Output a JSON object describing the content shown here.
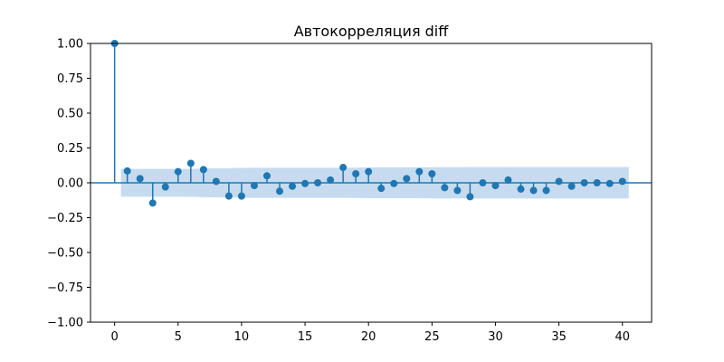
{
  "chart_data": {
    "type": "stem",
    "title": "Автокорреляция diff",
    "xlabel": "",
    "ylabel": "",
    "xlim": [
      -1.9,
      42.3
    ],
    "ylim": [
      -1.0,
      1.0
    ],
    "x_ticks": [
      0,
      5,
      10,
      15,
      20,
      25,
      30,
      35,
      40
    ],
    "x_tick_labels": [
      "0",
      "5",
      "10",
      "15",
      "20",
      "25",
      "30",
      "35",
      "40"
    ],
    "y_ticks": [
      1.0,
      0.75,
      0.5,
      0.25,
      0.0,
      -0.25,
      -0.5,
      -0.75,
      -1.0
    ],
    "y_tick_labels": [
      "1.00",
      "0.75",
      "0.50",
      "0.25",
      "0.00",
      "−0.25",
      "−0.50",
      "−0.75",
      "−1.00"
    ],
    "lags": [
      0,
      1,
      2,
      3,
      4,
      5,
      6,
      7,
      8,
      9,
      10,
      11,
      12,
      13,
      14,
      15,
      16,
      17,
      18,
      19,
      20,
      21,
      22,
      23,
      24,
      25,
      26,
      27,
      28,
      29,
      30,
      31,
      32,
      33,
      34,
      35,
      36,
      37,
      38,
      39,
      40
    ],
    "values": [
      1.0,
      0.085,
      0.03,
      -0.145,
      -0.03,
      0.08,
      0.14,
      0.095,
      0.01,
      -0.095,
      -0.095,
      -0.02,
      0.05,
      -0.06,
      -0.025,
      -0.005,
      0.0,
      0.02,
      0.11,
      0.065,
      0.08,
      -0.04,
      -0.005,
      0.03,
      0.08,
      0.065,
      -0.035,
      -0.055,
      -0.1,
      0.0,
      -0.02,
      0.02,
      -0.045,
      -0.055,
      -0.055,
      0.01,
      -0.025,
      0.0,
      0.0,
      -0.005,
      0.01
    ],
    "confidence_band": {
      "lags": [
        0.5,
        1,
        2,
        3,
        4,
        5,
        6,
        7,
        8,
        9,
        10,
        11,
        12,
        13,
        14,
        15,
        16,
        17,
        18,
        19,
        20,
        21,
        22,
        23,
        24,
        25,
        26,
        27,
        28,
        29,
        30,
        31,
        32,
        33,
        34,
        35,
        36,
        37,
        38,
        39,
        40,
        40.5
      ],
      "upper": [
        0.1,
        0.1,
        0.1,
        0.1,
        0.1,
        0.1,
        0.1,
        0.103,
        0.105,
        0.105,
        0.107,
        0.108,
        0.108,
        0.108,
        0.108,
        0.108,
        0.108,
        0.108,
        0.108,
        0.109,
        0.11,
        0.11,
        0.11,
        0.11,
        0.11,
        0.112,
        0.112,
        0.112,
        0.113,
        0.113,
        0.113,
        0.113,
        0.113,
        0.113,
        0.113,
        0.113,
        0.113,
        0.113,
        0.113,
        0.113,
        0.113,
        0.113
      ],
      "lower": [
        -0.1,
        -0.1,
        -0.1,
        -0.1,
        -0.1,
        -0.1,
        -0.1,
        -0.103,
        -0.105,
        -0.105,
        -0.107,
        -0.108,
        -0.108,
        -0.108,
        -0.108,
        -0.108,
        -0.108,
        -0.108,
        -0.108,
        -0.109,
        -0.11,
        -0.11,
        -0.11,
        -0.11,
        -0.11,
        -0.112,
        -0.112,
        -0.112,
        -0.113,
        -0.113,
        -0.113,
        -0.113,
        -0.113,
        -0.113,
        -0.113,
        -0.113,
        -0.113,
        -0.113,
        -0.113,
        -0.113,
        -0.113,
        -0.113
      ]
    },
    "grid": false,
    "legend": "none",
    "colors": {
      "series": "#1f77b4",
      "band": "#c6dbef",
      "axes": "#000000",
      "background": "#ffffff"
    }
  }
}
